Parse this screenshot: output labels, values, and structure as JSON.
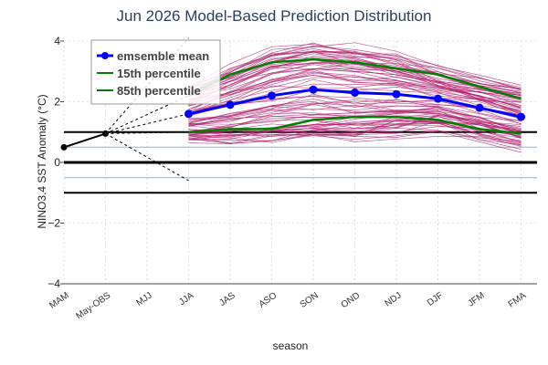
{
  "chart_data": {
    "type": "line",
    "title": "Jun 2026 Model-Based Prediction Distribution",
    "xlabel": "season",
    "ylabel": "NINO3.4 SST Anomaly (°C)",
    "ylim": [
      -4,
      4
    ],
    "yticks": [
      4,
      2,
      0,
      -2,
      -4
    ],
    "categories": [
      "MAM",
      "May-OBS",
      "MJJ",
      "JJA",
      "JAS",
      "ASO",
      "SON",
      "OND",
      "NDJ",
      "DJF",
      "JFM",
      "FMA"
    ],
    "observed": {
      "categories": [
        "MAM",
        "May-OBS"
      ],
      "values": [
        0.5,
        0.95
      ]
    },
    "series": [
      {
        "name": "emsemble mean",
        "color": "#0000ff",
        "values": [
          null,
          null,
          null,
          1.6,
          1.9,
          2.2,
          2.4,
          2.3,
          2.25,
          2.1,
          1.8,
          1.5
        ]
      },
      {
        "name": "15th percentile",
        "color": "#008000",
        "values": [
          null,
          null,
          null,
          1.0,
          1.1,
          1.1,
          1.4,
          1.5,
          1.5,
          1.4,
          1.1,
          0.95
        ]
      },
      {
        "name": "85th percentile",
        "color": "#008000",
        "values": [
          null,
          null,
          null,
          2.2,
          2.9,
          3.3,
          3.4,
          3.3,
          3.1,
          2.9,
          2.5,
          2.1
        ]
      }
    ],
    "reference_lines": {
      "black": [
        1,
        0,
        -1
      ],
      "light_blue": [
        0.5,
        -0.5
      ]
    },
    "member_color": "#b0206e",
    "member_count": 80,
    "grid": true,
    "legend_position": "top-left"
  }
}
